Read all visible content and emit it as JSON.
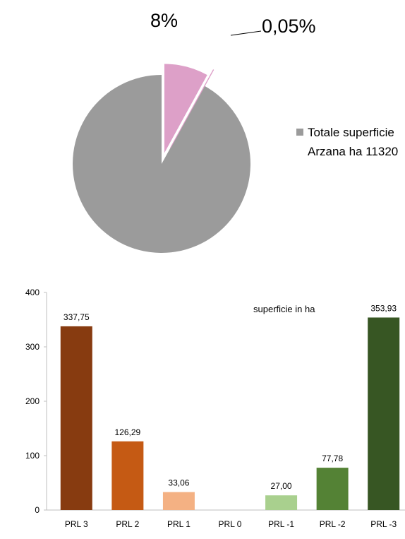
{
  "chart_data": [
    {
      "type": "pie",
      "slices": [
        {
          "label": "Totale superficie Arzana ha 11320",
          "value": 91.95,
          "color": "#9b9b9b"
        },
        {
          "label": "",
          "value": 8,
          "color": "#dda0c8"
        },
        {
          "label": "",
          "value": 0.05,
          "color": "#f2d0e6"
        }
      ],
      "data_labels": [
        "8%",
        "0,05%"
      ],
      "legend": {
        "position": "right",
        "entries": [
          {
            "line1": "Totale superficie",
            "line2": "Arzana ha 11320",
            "color": "#9b9b9b"
          }
        ]
      }
    },
    {
      "type": "bar",
      "categories": [
        "PRL 3",
        "PRL 2",
        "PRL 1",
        "PRL 0",
        "PRL -1",
        "PRL -2",
        "PRL -3"
      ],
      "values": [
        337.75,
        126.29,
        33.06,
        0,
        27.0,
        77.78,
        353.93
      ],
      "value_labels": [
        "337,75",
        "126,29",
        "33,06",
        "",
        "27,00",
        "77,78",
        "353,93"
      ],
      "colors": [
        "#873b10",
        "#c55a14",
        "#f4b183",
        "#ffffff",
        "#a9d08e",
        "#548235",
        "#375623"
      ],
      "annotation": "superficie in ha",
      "ylim": [
        0,
        400
      ],
      "yticks": [
        "0",
        "100",
        "200",
        "300",
        "400"
      ],
      "grid": false
    }
  ]
}
